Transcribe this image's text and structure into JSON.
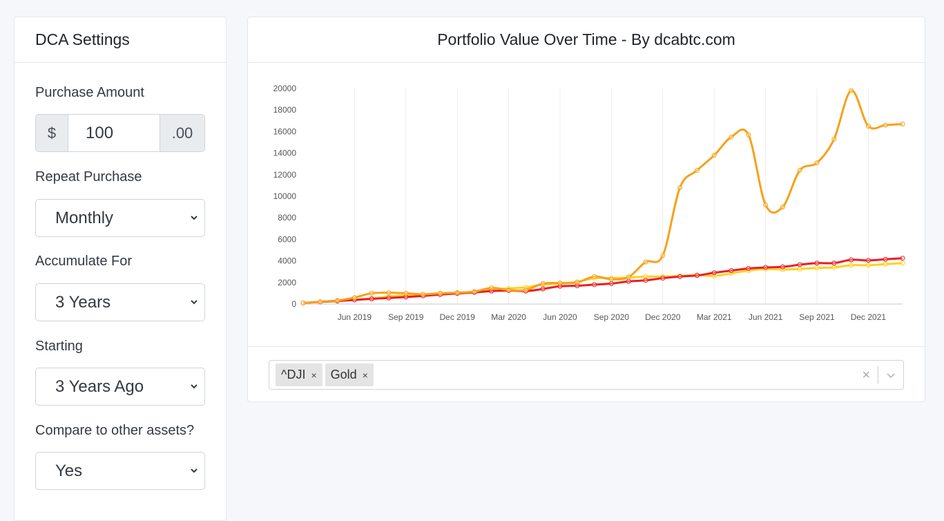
{
  "settings": {
    "title": "DCA Settings",
    "purchase_amount": {
      "label": "Purchase Amount",
      "prefix": "$",
      "value": "100",
      "suffix": ".00"
    },
    "repeat_purchase": {
      "label": "Repeat Purchase",
      "selected": "Monthly"
    },
    "accumulate_for": {
      "label": "Accumulate For",
      "selected": "3 Years"
    },
    "starting": {
      "label": "Starting",
      "selected": "3 Years Ago"
    },
    "compare": {
      "label": "Compare to other assets?",
      "selected": "Yes"
    }
  },
  "chart_card": {
    "title": "Portfolio Value Over Time - By dcabtc.com"
  },
  "asset_selector": {
    "chips": [
      {
        "label": "^DJI",
        "remove": "×"
      },
      {
        "label": "Gold",
        "remove": "×"
      }
    ],
    "clear": "×"
  },
  "colors": {
    "btc": "#f6a11a",
    "dji": "#ec1c24",
    "gold": "#ffd11a"
  },
  "chart_data": {
    "type": "line",
    "x_ticks": [
      "Jun 2019",
      "Sep 2019",
      "Dec 2019",
      "Mar 2020",
      "Jun 2020",
      "Sep 2020",
      "Dec 2020",
      "Mar 2021",
      "Jun 2021",
      "Sep 2021",
      "Dec 2021"
    ],
    "y_ticks": [
      0,
      2000,
      4000,
      6000,
      8000,
      10000,
      12000,
      14000,
      16000,
      18000,
      20000
    ],
    "ylim": [
      0,
      20000
    ],
    "x": [
      "Mar 2019",
      "Apr 2019",
      "May 2019",
      "Jun 2019",
      "Jul 2019",
      "Aug 2019",
      "Sep 2019",
      "Oct 2019",
      "Nov 2019",
      "Dec 2019",
      "Jan 2020",
      "Feb 2020",
      "Mar 2020",
      "Apr 2020",
      "May 2020",
      "Jun 2020",
      "Jul 2020",
      "Aug 2020",
      "Sep 2020",
      "Oct 2020",
      "Nov 2020",
      "Dec 2020",
      "Jan 2021",
      "Feb 2021",
      "Mar 2021",
      "Apr 2021",
      "May 2021",
      "Jun 2021",
      "Jul 2021",
      "Aug 2021",
      "Sep 2021",
      "Oct 2021",
      "Nov 2021",
      "Dec 2021",
      "Jan 2022",
      "Feb 2022"
    ],
    "grid": true,
    "legend": "none",
    "series": [
      {
        "color_key": "btc",
        "values": [
          100,
          220,
          330,
          600,
          1000,
          1050,
          1000,
          900,
          1000,
          1050,
          1150,
          1500,
          1300,
          1300,
          1900,
          1950,
          2000,
          2550,
          2300,
          2500,
          3900,
          4500,
          10800,
          12400,
          13800,
          15500,
          15700,
          9200,
          9000,
          12400,
          13100,
          15300,
          19800,
          16500,
          16600,
          16700
        ]
      },
      {
        "color_key": "dji",
        "values": [
          100,
          200,
          280,
          380,
          480,
          560,
          650,
          750,
          880,
          980,
          1080,
          1200,
          1250,
          1200,
          1400,
          1650,
          1700,
          1800,
          1900,
          2100,
          2200,
          2400,
          2550,
          2650,
          2900,
          3100,
          3300,
          3400,
          3450,
          3650,
          3800,
          3800,
          4100,
          4050,
          4150,
          4250
        ]
      },
      {
        "color_key": "gold",
        "values": [
          100,
          200,
          280,
          400,
          520,
          700,
          800,
          850,
          950,
          1050,
          1150,
          1350,
          1450,
          1550,
          1800,
          1900,
          2050,
          2400,
          2400,
          2450,
          2550,
          2550,
          2600,
          2700,
          2600,
          2850,
          3100,
          3250,
          3200,
          3250,
          3350,
          3400,
          3600,
          3600,
          3700,
          3800
        ]
      }
    ]
  }
}
